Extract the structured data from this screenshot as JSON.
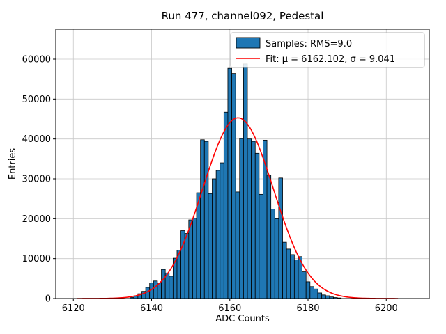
{
  "title": "Run 477, channel092, Pedestal",
  "chart_data": {
    "type": "bar",
    "subtype": "histogram-with-gaussian-fit",
    "title": "Run 477, channel092, Pedestal",
    "xlabel": "ADC Counts",
    "ylabel": "Entries",
    "xlim": [
      6115.5,
      6211.0
    ],
    "ylim": [
      0,
      67500
    ],
    "xticks": [
      6120,
      6140,
      6160,
      6180,
      6200
    ],
    "yticks": [
      0,
      10000,
      20000,
      30000,
      40000,
      50000,
      60000
    ],
    "grid": true,
    "grid_color": "#c8c8c8",
    "bar_color": "#1f77b4",
    "bar_edge_color": "#000000",
    "histogram": {
      "bin_start": 6134.5,
      "bin_width": 1,
      "counts": [
        300,
        700,
        1200,
        1800,
        2800,
        3900,
        4400,
        3900,
        7300,
        6400,
        5600,
        10100,
        12100,
        17000,
        16300,
        19700,
        20100,
        26500,
        39800,
        39400,
        26300,
        30000,
        32100,
        34000,
        46700,
        57700,
        56400,
        26700,
        40100,
        58800,
        40000,
        39400,
        36400,
        26100,
        39700,
        30900,
        22400,
        20000,
        30200,
        14100,
        12400,
        11000,
        9700,
        10500,
        6700,
        4200,
        3000,
        2400,
        1400,
        900,
        700,
        400,
        250,
        150
      ]
    },
    "fit": {
      "mu": 6162.102,
      "sigma": 9.041,
      "amplitude": 45300,
      "color": "#ff0000",
      "x_range": [
        6121,
        6203
      ]
    },
    "legend": {
      "position": "upper right",
      "entries": [
        {
          "label": "Samples: RMS=9.0",
          "type": "patch",
          "color": "#1f77b4"
        },
        {
          "label": "Fit: μ = 6162.102, σ = 9.041",
          "type": "line",
          "color": "#ff0000"
        }
      ]
    },
    "samples_rms": 9.0
  }
}
